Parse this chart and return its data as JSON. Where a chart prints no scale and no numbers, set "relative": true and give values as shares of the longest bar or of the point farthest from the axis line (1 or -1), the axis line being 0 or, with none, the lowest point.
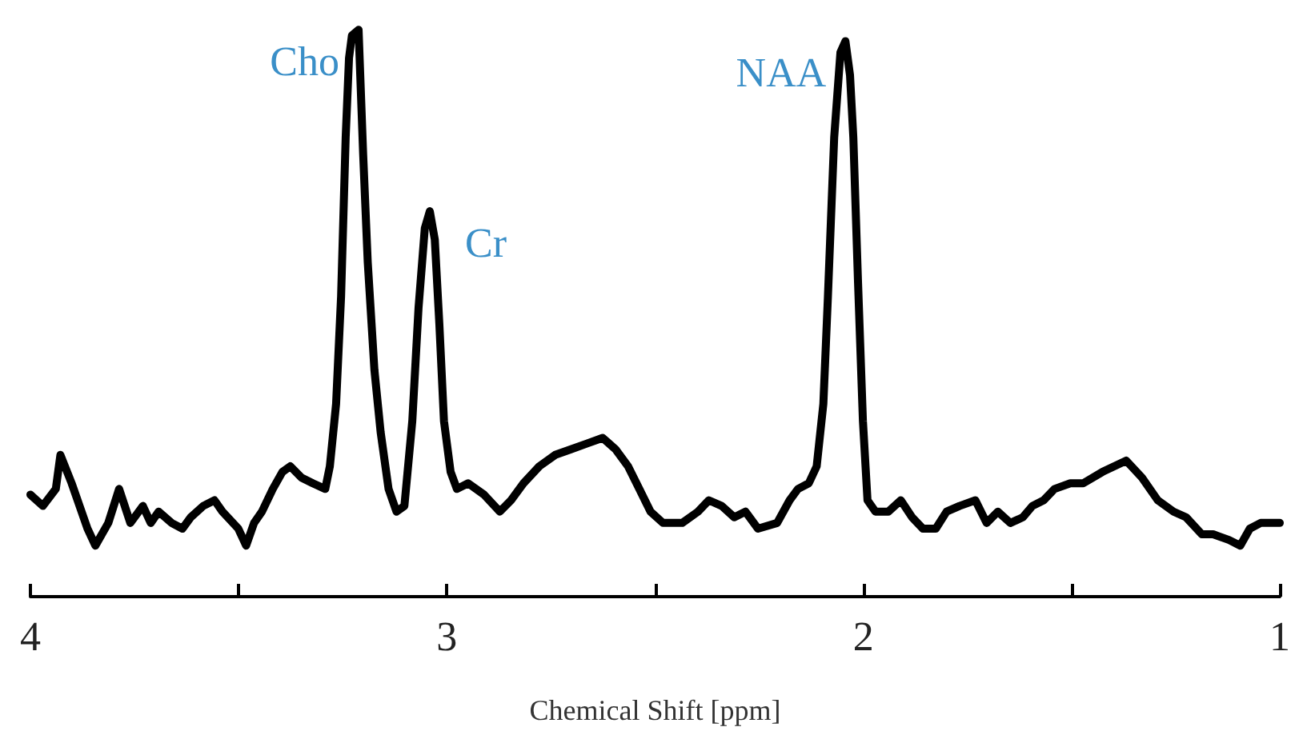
{
  "chart_data": {
    "type": "line",
    "relative": true,
    "xlabel": "Chemical Shift [ppm]",
    "xlim": [
      4,
      1
    ],
    "xticks": [
      4,
      {
        "value": 3.5,
        "label": null
      },
      3,
      {
        "value": 2.5,
        "label": null
      },
      2,
      {
        "value": 1.5,
        "label": null
      },
      1
    ],
    "marker": "none",
    "line_style": "solid",
    "annotations": [
      {
        "text": "Cho",
        "x": 3.212,
        "y": 1.0
      },
      {
        "text": "Cr",
        "x": 3.041,
        "y": 0.68
      },
      {
        "text": "NAA",
        "x": 2.043,
        "y": 0.98
      }
    ],
    "series": [
      {
        "color": "#000000",
        "x": [
          4.0,
          3.97,
          3.939,
          3.928,
          3.901,
          3.863,
          3.844,
          3.813,
          3.787,
          3.76,
          3.73,
          3.711,
          3.692,
          3.661,
          3.635,
          3.615,
          3.585,
          3.558,
          3.539,
          3.501,
          3.482,
          3.463,
          3.444,
          3.418,
          3.395,
          3.376,
          3.349,
          3.322,
          3.292,
          3.281,
          3.266,
          3.254,
          3.243,
          3.235,
          3.228,
          3.212,
          3.201,
          3.19,
          3.174,
          3.159,
          3.14,
          3.121,
          3.102,
          3.083,
          3.068,
          3.053,
          3.041,
          3.029,
          3.018,
          3.007,
          2.991,
          2.976,
          2.949,
          2.911,
          2.873,
          2.846,
          2.816,
          2.778,
          2.74,
          2.702,
          2.664,
          2.626,
          2.595,
          2.565,
          2.538,
          2.511,
          2.481,
          2.435,
          2.397,
          2.371,
          2.34,
          2.31,
          2.283,
          2.253,
          2.207,
          2.177,
          2.157,
          2.131,
          2.112,
          2.096,
          2.085,
          2.07,
          2.055,
          2.043,
          2.032,
          2.024,
          2.013,
          2.001,
          1.99,
          1.971,
          1.94,
          1.91,
          1.883,
          1.857,
          1.826,
          1.8,
          1.769,
          1.731,
          1.704,
          1.677,
          1.647,
          1.617,
          1.594,
          1.567,
          1.541,
          1.503,
          1.472,
          1.426,
          1.369,
          1.331,
          1.293,
          1.255,
          1.225,
          1.187,
          1.16,
          1.122,
          1.095,
          1.072,
          1.046,
          1.0
        ],
        "values": [
          0.18,
          0.16,
          0.19,
          0.25,
          0.2,
          0.12,
          0.09,
          0.13,
          0.19,
          0.13,
          0.16,
          0.13,
          0.15,
          0.13,
          0.12,
          0.14,
          0.16,
          0.17,
          0.15,
          0.12,
          0.09,
          0.13,
          0.15,
          0.19,
          0.22,
          0.23,
          0.21,
          0.2,
          0.19,
          0.23,
          0.34,
          0.53,
          0.81,
          0.95,
          0.99,
          1.0,
          0.78,
          0.59,
          0.4,
          0.29,
          0.19,
          0.15,
          0.16,
          0.31,
          0.51,
          0.65,
          0.68,
          0.63,
          0.48,
          0.31,
          0.22,
          0.19,
          0.2,
          0.18,
          0.15,
          0.17,
          0.2,
          0.23,
          0.25,
          0.26,
          0.27,
          0.28,
          0.26,
          0.23,
          0.19,
          0.15,
          0.13,
          0.13,
          0.15,
          0.17,
          0.16,
          0.14,
          0.15,
          0.12,
          0.13,
          0.17,
          0.19,
          0.2,
          0.23,
          0.34,
          0.53,
          0.81,
          0.96,
          0.98,
          0.92,
          0.81,
          0.56,
          0.31,
          0.17,
          0.15,
          0.15,
          0.17,
          0.14,
          0.12,
          0.12,
          0.15,
          0.16,
          0.17,
          0.13,
          0.15,
          0.13,
          0.14,
          0.16,
          0.17,
          0.19,
          0.2,
          0.2,
          0.22,
          0.24,
          0.21,
          0.17,
          0.15,
          0.14,
          0.11,
          0.11,
          0.1,
          0.09,
          0.12,
          0.13,
          0.13
        ]
      }
    ]
  }
}
